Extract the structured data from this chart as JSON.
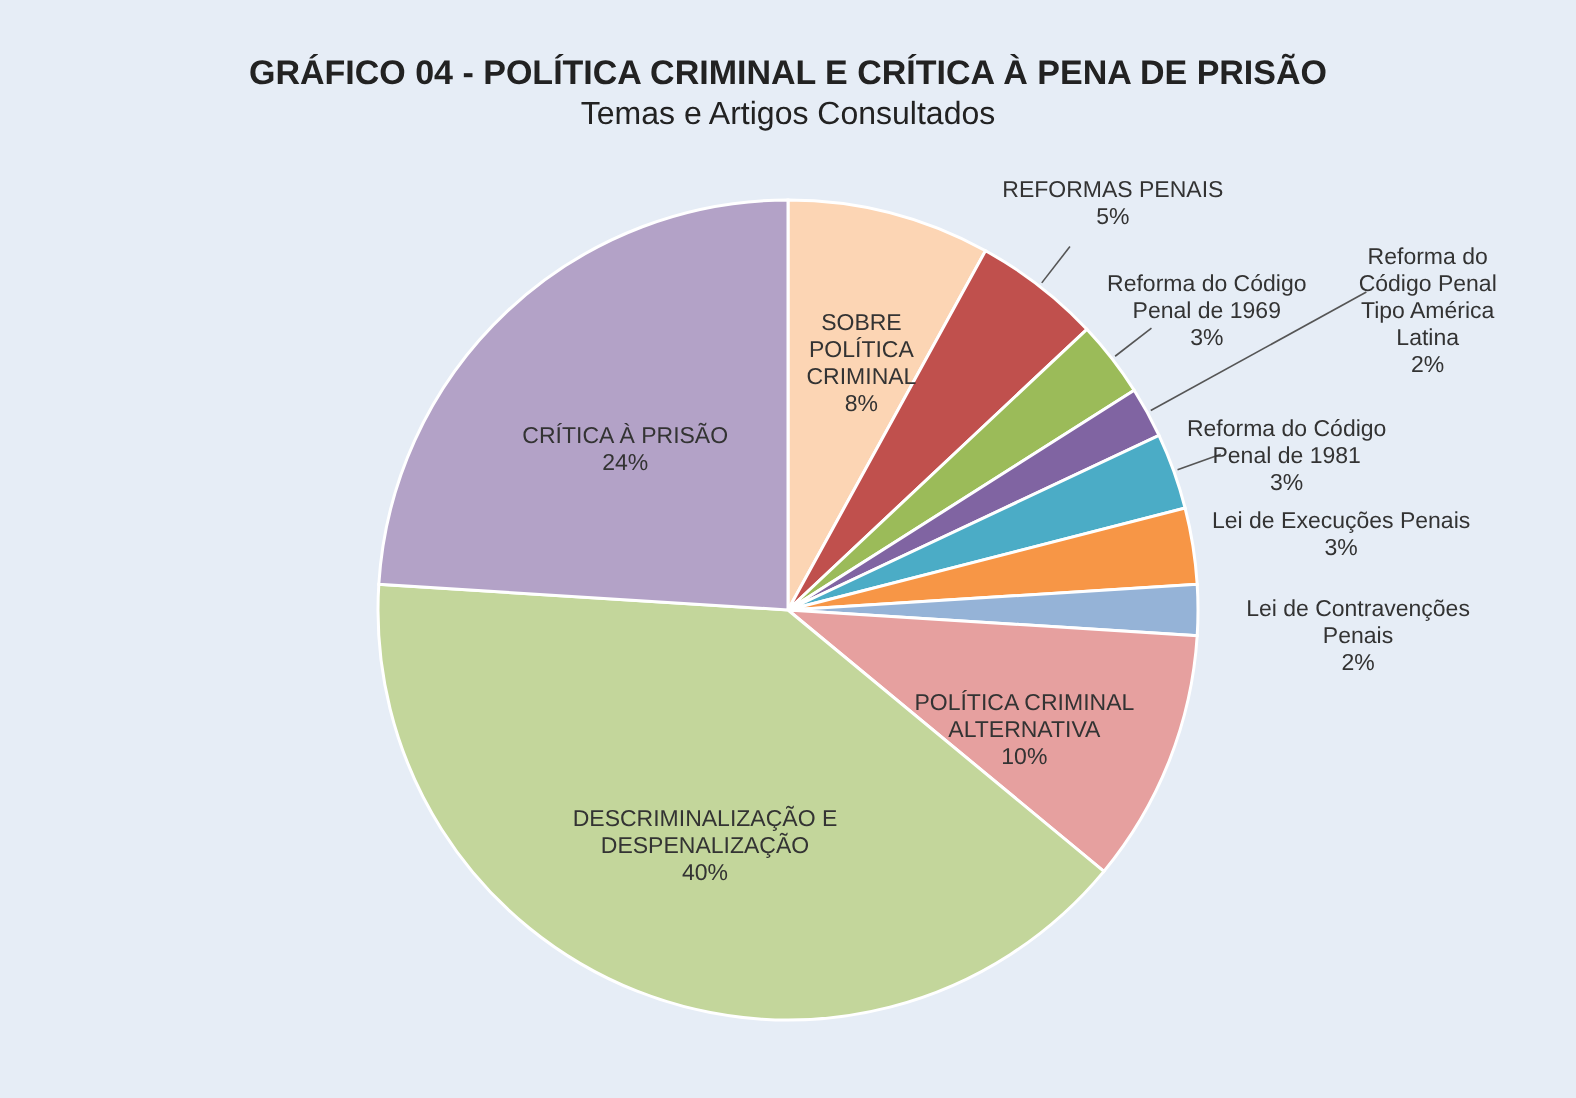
{
  "chart_data": {
    "type": "pie",
    "title": "GRÁFICO 04 -  POLÍTICA CRIMINAL E CRÍTICA À PENA DE PRISÃO",
    "subtitle": "Temas e Artigos  Consultados",
    "categories": [
      "SOBRE\nPOLÍTICA\nCRIMINAL",
      "REFORMAS PENAIS",
      "Reforma do Código\nPenal de 1969",
      "Reforma do\nCódigo Penal\nTipo América\nLatina",
      "Reforma do Código\nPenal de 1981",
      "Lei de Execuções Penais",
      "Lei de Contravenções\nPenais",
      "POLÍTICA CRIMINAL\nALTERNATIVA",
      "DESCRIMINALIZAÇÃO E\nDESPENALIZAÇÃO",
      "CRÍTICA À PRISÃO"
    ],
    "values": [
      8,
      5,
      3,
      2,
      3,
      3,
      2,
      10,
      40,
      24
    ],
    "colors": [
      "#fcd5b4",
      "#c0504d",
      "#9bbb59",
      "#8064a2",
      "#4bacc6",
      "#f79646",
      "#95b3d7",
      "#e6a09f",
      "#c3d69b",
      "#b3a2c7"
    ],
    "value_labels": [
      "8%",
      "5%",
      "3%",
      "2%",
      "3%",
      "3%",
      "2%",
      "10%",
      "40%",
      "24%"
    ]
  }
}
